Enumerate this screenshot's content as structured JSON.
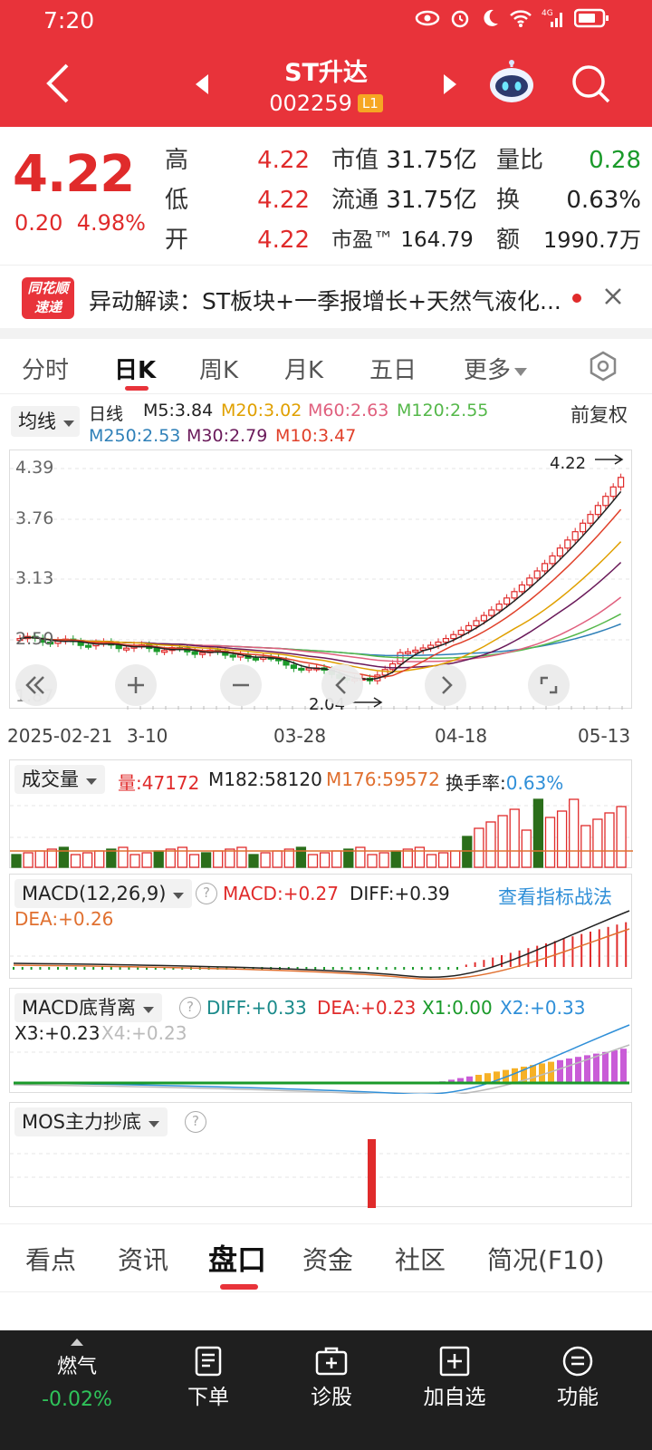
{
  "status": {
    "time": "7:20",
    "net": "4G"
  },
  "header": {
    "stock_name": "ST升达",
    "stock_code": "002259",
    "level": "L1"
  },
  "quote": {
    "price": "4.22",
    "change": "0.20",
    "change_pct": "4.98%",
    "col1": [
      {
        "label": "高",
        "value": "4.22"
      },
      {
        "label": "低",
        "value": "4.22"
      },
      {
        "label": "开",
        "value": "4.22"
      }
    ],
    "col2": [
      {
        "label": "市值",
        "value": "31.75亿"
      },
      {
        "label": "流通",
        "value": "31.75亿"
      },
      {
        "label": "市盈™",
        "value": "164.79"
      }
    ],
    "col3": [
      {
        "label": "量比",
        "value": "0.28"
      },
      {
        "label": "换",
        "value": "0.63%"
      },
      {
        "label": "额",
        "value": "1990.7万"
      }
    ]
  },
  "news": {
    "logo_line1": "同花顺",
    "logo_line2": "速递",
    "text": "异动解读：ST板块+一季报增长+天然气液化..."
  },
  "chart_tabs": [
    "分时",
    "日K",
    "周K",
    "月K",
    "五日",
    "更多"
  ],
  "ma": {
    "selector": "均线",
    "period_label": "日线",
    "items": [
      {
        "label": "M5:3.84",
        "color": "#222222"
      },
      {
        "label": "M20:3.02",
        "color": "#e0a000"
      },
      {
        "label": "M60:2.63",
        "color": "#e0607e"
      },
      {
        "label": "M120:2.55",
        "color": "#55b84a"
      },
      {
        "label": "M250:2.53",
        "color": "#2f80b8"
      },
      {
        "label": "M30:2.79",
        "color": "#6a1a5a"
      },
      {
        "label": "M10:3.47",
        "color": "#e0402a"
      }
    ],
    "adjust": "前复权"
  },
  "kline": {
    "y_ticks": [
      "4.39",
      "3.76",
      "3.13",
      "2.50",
      "1.87"
    ],
    "high_label": "4.22",
    "low_label": "2.04",
    "dates": [
      "2025-02-21",
      "3-10",
      "03-28",
      "04-18",
      "05-13"
    ]
  },
  "volume": {
    "selector": "成交量",
    "vol": "量:47172",
    "m182": "M182:58120",
    "m176": "M176:59572",
    "turnover_label": "换手率:",
    "turnover_value": "0.63%"
  },
  "macd": {
    "selector": "MACD(12,26,9)",
    "macd": "MACD:+0.27",
    "diff": "DIFF:+0.39",
    "link": "查看指标战法",
    "dea": "DEA:+0.26"
  },
  "macd_div": {
    "selector": "MACD底背离",
    "diff": "DIFF:+0.33",
    "dea": "DEA:+0.23",
    "x1": "X1:0.00",
    "x2": "X2:+0.33",
    "x3": "X3:+0.23",
    "x4": "X4:+0.23"
  },
  "mos": {
    "selector": "MOS主力抄底"
  },
  "bottom_tabs": [
    "看点",
    "资讯",
    "盘口",
    "资金",
    "社区",
    "简况(F10)"
  ],
  "actions": {
    "ticker_name": "燃气",
    "ticker_change": "-0.02%",
    "items": [
      "下单",
      "诊股",
      "加自选",
      "功能"
    ]
  },
  "colors": {
    "up": "#e02b2b",
    "down": "#1a9a2a",
    "brand": "#e8333a"
  }
}
